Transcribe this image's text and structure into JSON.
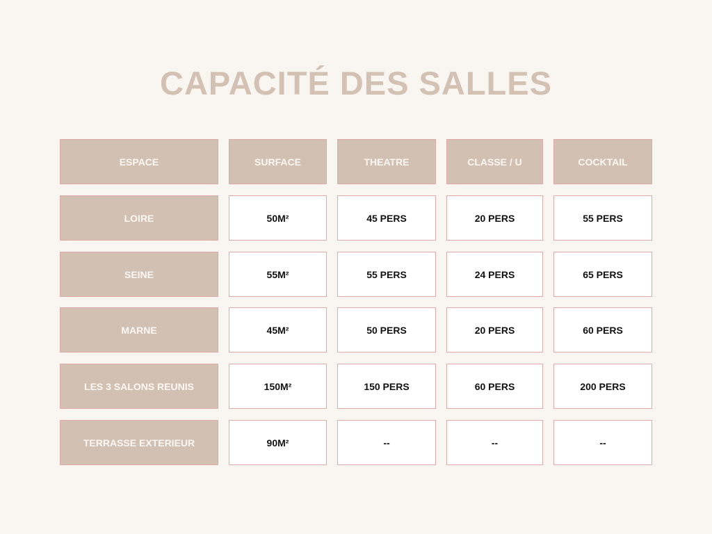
{
  "title": "CAPACITÉ DES SALLES",
  "colors": {
    "background": "#f9f5f0",
    "header_fill": "#d2c1b3",
    "border": "#e0aaa9",
    "title": "#d3c2b4"
  },
  "table": {
    "headers": [
      "ESPACE",
      "SURFACE",
      "THEATRE",
      "CLASSE / U",
      "COCKTAIL"
    ],
    "rows": [
      [
        "LOIRE",
        "50M²",
        "45 PERS",
        "20 PERS",
        "55 PERS"
      ],
      [
        "SEINE",
        "55M²",
        "55 PERS",
        "24 PERS",
        "65 PERS"
      ],
      [
        "MARNE",
        "45M²",
        "50 PERS",
        "20 PERS",
        "60 PERS"
      ],
      [
        "LES 3 SALONS REUNIS",
        "150M²",
        "150 PERS",
        "60 PERS",
        "200 PERS"
      ],
      [
        "TERRASSE EXTERIEUR",
        "90M²",
        "--",
        "--",
        "--"
      ]
    ]
  }
}
